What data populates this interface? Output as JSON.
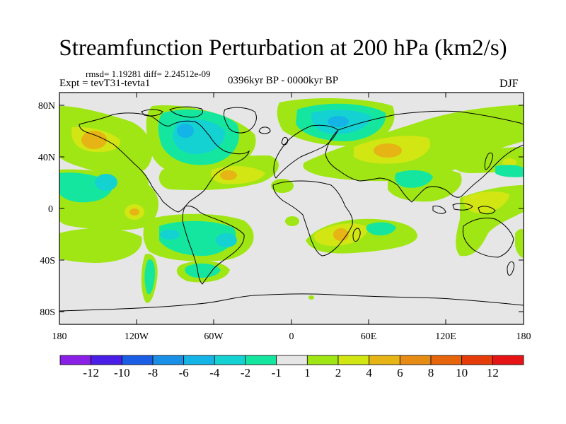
{
  "title": "Streamfunction Perturbation at 200 hPa (km2/s)",
  "stats_line": "rmsd= 1.19281 diff= 2.24512e-09",
  "experiment": "Expt = tevT31-tevta1",
  "period": "0396kyr BP - 0000kyr BP",
  "season": "DJF",
  "y_axis_labels": [
    "80N",
    "40N",
    "0",
    "40S",
    "80S"
  ],
  "x_axis_labels": [
    "180",
    "120W",
    "60W",
    "0",
    "60E",
    "120E",
    "180"
  ],
  "colorbar": {
    "labels": [
      "-12",
      "-10",
      "-8",
      "-6",
      "-4",
      "-2",
      "-1",
      "1",
      "2",
      "4",
      "6",
      "8",
      "10",
      "12"
    ],
    "colors": [
      "#8a1fe6",
      "#4a1ee6",
      "#1a5ee6",
      "#1a8fe6",
      "#14b4e6",
      "#14d2d2",
      "#14e6a0",
      "#e6e6e6",
      "#a0e614",
      "#d2e614",
      "#e6b414",
      "#e68c14",
      "#e6640a",
      "#e63c0a",
      "#e61414"
    ]
  },
  "chart_data": {
    "type": "heatmap",
    "title": "Streamfunction Perturbation at 200 hPa (km2/s)",
    "units": "km2/s",
    "x_range": [
      -180,
      180
    ],
    "y_range": [
      -90,
      90
    ],
    "levels": [
      -12,
      -10,
      -8,
      -6,
      -4,
      -2,
      -1,
      1,
      2,
      4,
      6,
      8,
      10,
      12
    ],
    "field": [
      {
        "lon": -150,
        "lat": 50,
        "value": 3,
        "label": "positive anomaly NE Pacific"
      },
      {
        "lon": -85,
        "lat": 55,
        "value": -3,
        "label": "negative anomaly North America"
      },
      {
        "lon": 25,
        "lat": 70,
        "value": -3,
        "label": "negative anomaly Scandinavia"
      },
      {
        "lon": 75,
        "lat": 45,
        "value": 3,
        "label": "positive anomaly Central Asia"
      },
      {
        "lon": -40,
        "lat": 30,
        "value": 3,
        "label": "positive anomaly North Atlantic"
      },
      {
        "lon": 30,
        "lat": -25,
        "value": 3,
        "label": "positive anomaly southern Africa"
      },
      {
        "lon": -60,
        "lat": -25,
        "value": -3,
        "label": "negative anomaly South America"
      },
      {
        "lon": -120,
        "lat": 0,
        "value": 2,
        "label": "positive anomaly eastern Pacific"
      },
      {
        "lon": 150,
        "lat": -20,
        "value": 2,
        "label": "positive anomaly Australia"
      }
    ]
  }
}
